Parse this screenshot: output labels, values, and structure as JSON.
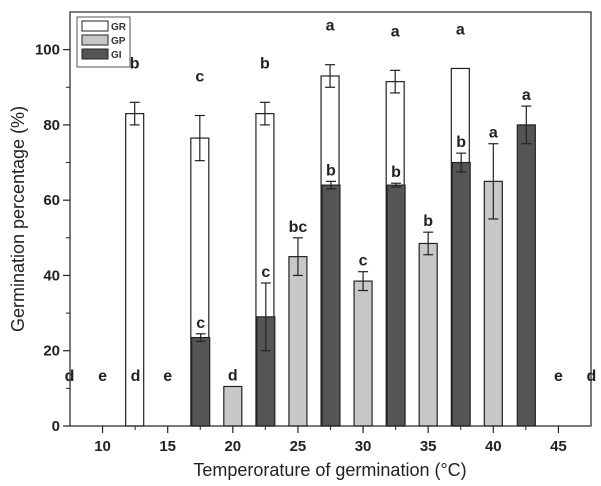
{
  "chart_data": {
    "type": "bar",
    "xlabel": "Temperorature of germination (°C)",
    "ylabel": "Germination percentage (%)",
    "ylim": [
      0,
      110
    ],
    "yticks": [
      0,
      20,
      40,
      60,
      80,
      100
    ],
    "categories": [
      "10",
      "15",
      "20",
      "25",
      "30",
      "35",
      "40",
      "45"
    ],
    "legend_position": "top-left",
    "series": [
      {
        "name": "GR",
        "color": "#ffffff",
        "values": [
          0,
          83,
          76.5,
          83,
          93,
          91.5,
          95,
          0
        ],
        "errors": [
          0,
          3,
          6,
          3,
          3,
          3,
          0,
          0
        ],
        "letters": [
          "d",
          "b",
          "c",
          "b",
          "a",
          "a",
          "a",
          "d"
        ]
      },
      {
        "name": "GP",
        "color": "#c8c8c8",
        "values": [
          0,
          0,
          10.5,
          45,
          38.5,
          48.5,
          65,
          0
        ],
        "errors": [
          0,
          0,
          0,
          5,
          2.5,
          3,
          10,
          0
        ],
        "letters": [
          "e",
          "e",
          "d",
          "bc",
          "c",
          "b",
          "a",
          "e"
        ]
      },
      {
        "name": "GI",
        "color": "#555555",
        "values": [
          0,
          23.5,
          29,
          64,
          64,
          70,
          80,
          0
        ],
        "errors": [
          0,
          1,
          9,
          1,
          0.5,
          2.5,
          5,
          0
        ],
        "letters": [
          "d",
          "c",
          "c",
          "b",
          "b",
          "b",
          "a",
          "d"
        ]
      }
    ]
  }
}
